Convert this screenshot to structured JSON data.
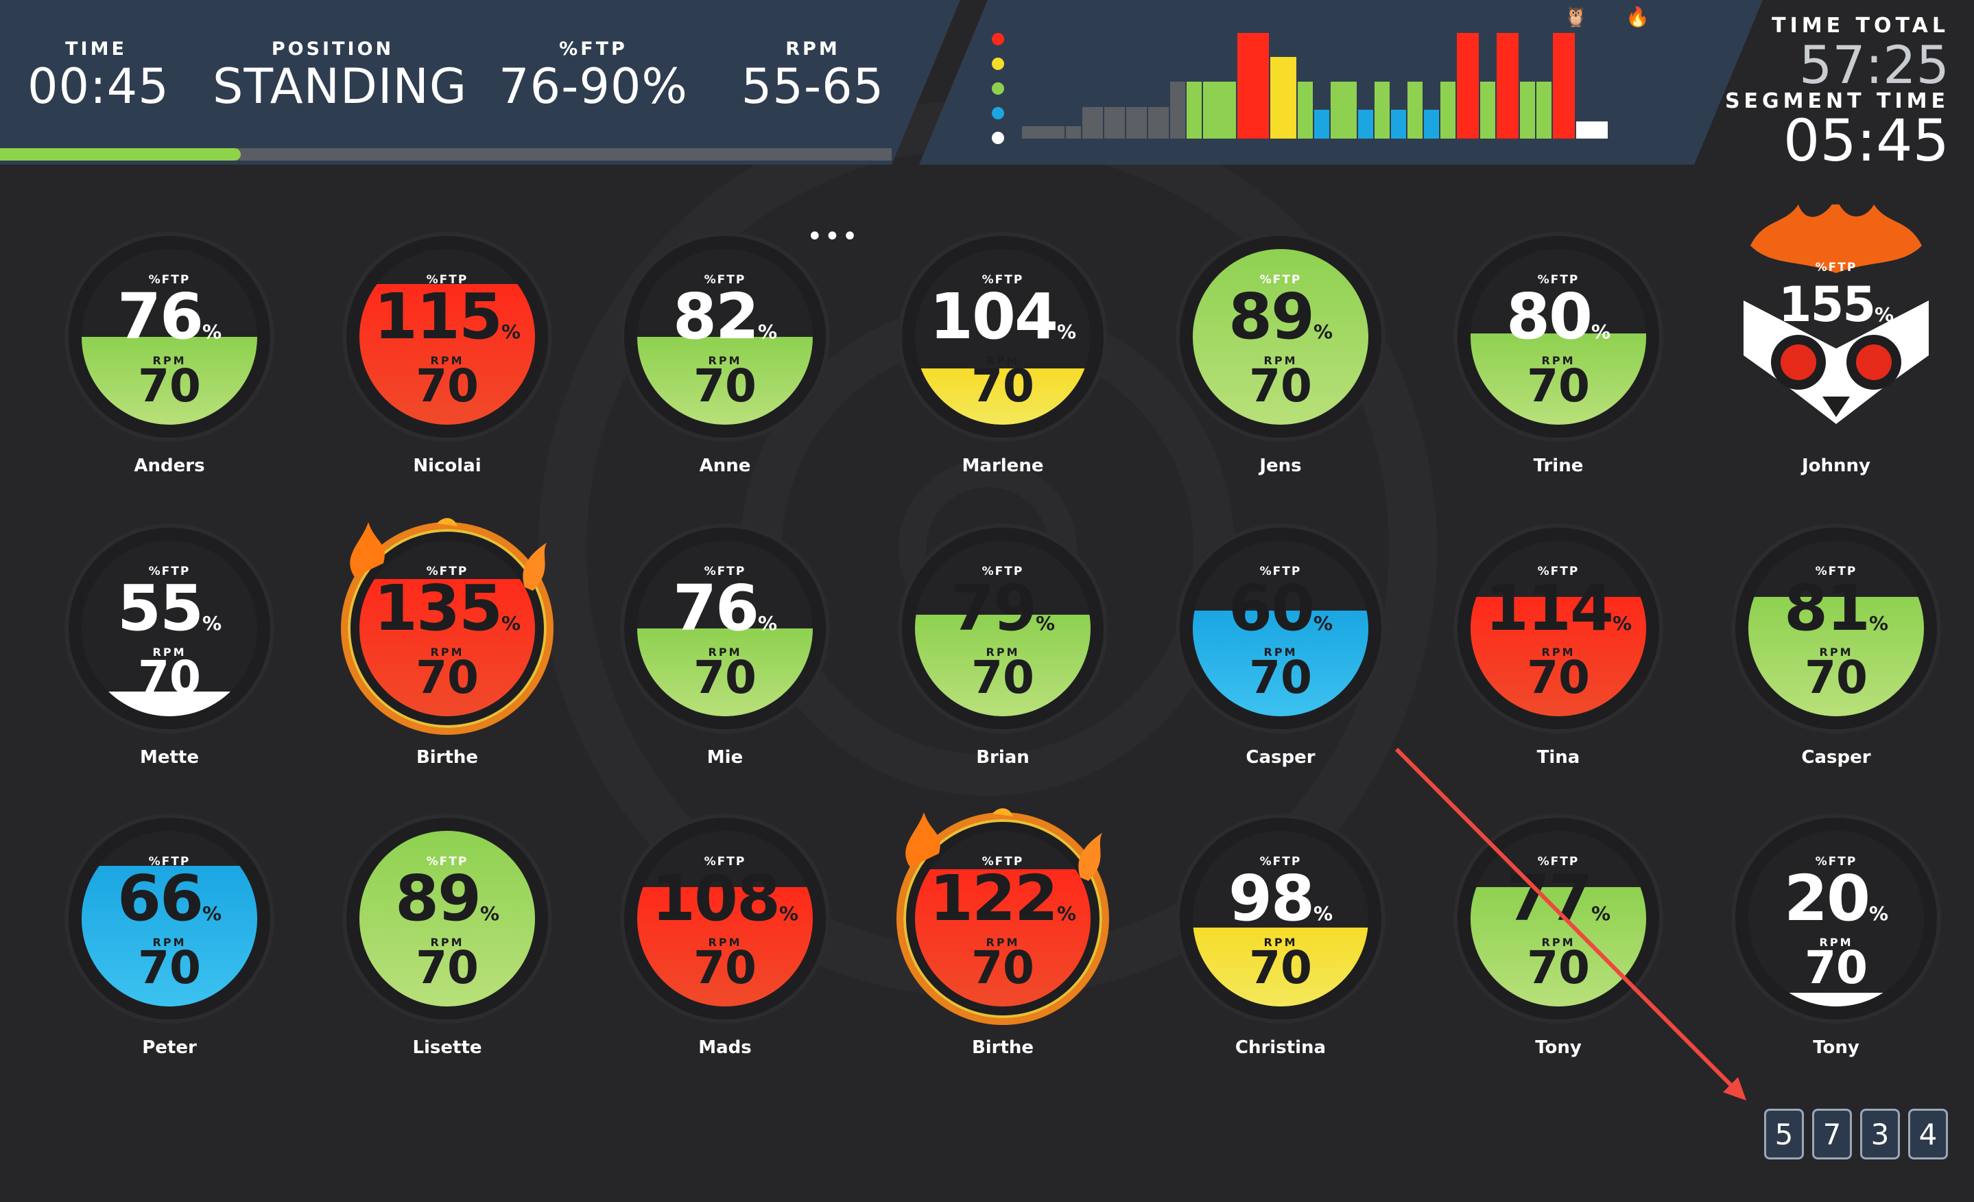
{
  "header": {
    "stats": [
      {
        "label": "TIME",
        "value": "00:45"
      },
      {
        "label": "POSITION",
        "value": "STANDING"
      },
      {
        "label": "%FTP",
        "value": "76-90%"
      },
      {
        "label": "RPM",
        "value": "55-65"
      }
    ],
    "segment_progress_percent": 27,
    "time_total_label": "TIME TOTAL",
    "time_total_value": "57:25",
    "segment_time_label": "SEGMENT TIME",
    "segment_time_value": "05:45"
  },
  "workout_profile": {
    "legend_colors": [
      "#ff2a1a",
      "#f7dc2a",
      "#8ed150",
      "#1ba6e2",
      "#ffffff"
    ],
    "segments": [
      {
        "level": 0.12,
        "color": "#5c5f64"
      },
      {
        "level": 0.12,
        "color": "#5c5f64"
      },
      {
        "level": 0.3,
        "color": "#5c5f64"
      },
      {
        "level": 0.3,
        "color": "#5c5f64"
      },
      {
        "level": 0.3,
        "color": "#5c5f64"
      },
      {
        "level": 0.3,
        "color": "#5c5f64"
      },
      {
        "level": 0.54,
        "color": "#5c5f64"
      },
      {
        "level": 0.54,
        "color": "#8ed150"
      },
      {
        "level": 0.54,
        "color": "#8ed150"
      },
      {
        "level": 1.0,
        "color": "#ff2a1a"
      },
      {
        "level": 0.77,
        "color": "#f7dc2a"
      },
      {
        "level": 0.54,
        "color": "#8ed150"
      },
      {
        "level": 0.27,
        "color": "#1ba6e2"
      },
      {
        "level": 0.54,
        "color": "#8ed150"
      },
      {
        "level": 0.27,
        "color": "#1ba6e2"
      },
      {
        "level": 0.54,
        "color": "#8ed150"
      },
      {
        "level": 0.27,
        "color": "#1ba6e2"
      },
      {
        "level": 0.54,
        "color": "#8ed150"
      },
      {
        "level": 0.27,
        "color": "#1ba6e2"
      },
      {
        "level": 0.54,
        "color": "#8ed150"
      },
      {
        "level": 1.0,
        "color": "#ff2a1a"
      },
      {
        "level": 0.54,
        "color": "#8ed150"
      },
      {
        "level": 1.0,
        "color": "#ff2a1a"
      },
      {
        "level": 0.54,
        "color": "#8ed150"
      },
      {
        "level": 0.54,
        "color": "#8ed150"
      },
      {
        "level": 1.0,
        "color": "#ff2a1a"
      },
      {
        "level": 0.16,
        "color": "#ffffff"
      }
    ],
    "markers": [
      "owl-icon",
      "flame-icon"
    ]
  },
  "riders_labels": {
    "ftp": "%FTP",
    "rpm": "RPM",
    "pct": "%"
  },
  "riders": [
    {
      "name": "Anders",
      "ftp": "76",
      "rpm": "70",
      "zone": "green",
      "fill": 0.5,
      "fire": false
    },
    {
      "name": "Nicolai",
      "ftp": "115",
      "rpm": "70",
      "zone": "red",
      "fill": 0.8,
      "fire": false
    },
    {
      "name": "Anne",
      "ftp": "82",
      "rpm": "70",
      "zone": "green",
      "fill": 0.5,
      "fire": false
    },
    {
      "name": "Marlene",
      "ftp": "104",
      "rpm": "70",
      "zone": "yellow",
      "fill": 0.32,
      "fire": false
    },
    {
      "name": "Jens",
      "ftp": "89",
      "rpm": "70",
      "zone": "green",
      "fill": 1.0,
      "fire": false
    },
    {
      "name": "Trine",
      "ftp": "80",
      "rpm": "70",
      "zone": "green",
      "fill": 0.52,
      "fire": false
    },
    {
      "name": "Johnny",
      "ftp": "155",
      "rpm": "",
      "zone": "owl",
      "fill": 0,
      "fire": true
    },
    {
      "name": "Mette",
      "ftp": "55",
      "rpm": "70",
      "zone": "white",
      "fill": 0.14,
      "fire": false
    },
    {
      "name": "Birthe",
      "ftp": "135",
      "rpm": "70",
      "zone": "red",
      "fill": 0.78,
      "fire": true
    },
    {
      "name": "Mie",
      "ftp": "76",
      "rpm": "70",
      "zone": "green",
      "fill": 0.5,
      "fire": false
    },
    {
      "name": "Brian",
      "ftp": "79",
      "rpm": "70",
      "zone": "green",
      "fill": 0.58,
      "fire": false
    },
    {
      "name": "Casper",
      "ftp": "60",
      "rpm": "70",
      "zone": "blue",
      "fill": 0.6,
      "fire": false
    },
    {
      "name": "Tina",
      "ftp": "114",
      "rpm": "70",
      "zone": "red",
      "fill": 0.68,
      "fire": false
    },
    {
      "name": "Casper",
      "ftp": "81",
      "rpm": "70",
      "zone": "green",
      "fill": 0.68,
      "fire": false
    },
    {
      "name": "Peter",
      "ftp": "66",
      "rpm": "70",
      "zone": "blue",
      "fill": 0.8,
      "fire": false
    },
    {
      "name": "Lisette",
      "ftp": "89",
      "rpm": "70",
      "zone": "green",
      "fill": 1.0,
      "fire": false
    },
    {
      "name": "Mads",
      "ftp": "108",
      "rpm": "70",
      "zone": "red",
      "fill": 0.68,
      "fire": false
    },
    {
      "name": "Birthe",
      "ftp": "122",
      "rpm": "70",
      "zone": "red",
      "fill": 0.78,
      "fire": true
    },
    {
      "name": "Christina",
      "ftp": "98",
      "rpm": "70",
      "zone": "yellow",
      "fill": 0.45,
      "fire": false
    },
    {
      "name": "Tony",
      "ftp": "77",
      "rpm": "70",
      "zone": "green",
      "fill": 0.68,
      "fire": false
    },
    {
      "name": "Tony",
      "ftp": "20",
      "rpm": "70",
      "zone": "white",
      "fill": 0.08,
      "fire": false
    }
  ],
  "pagination": [
    "5",
    "7",
    "3",
    "4"
  ]
}
